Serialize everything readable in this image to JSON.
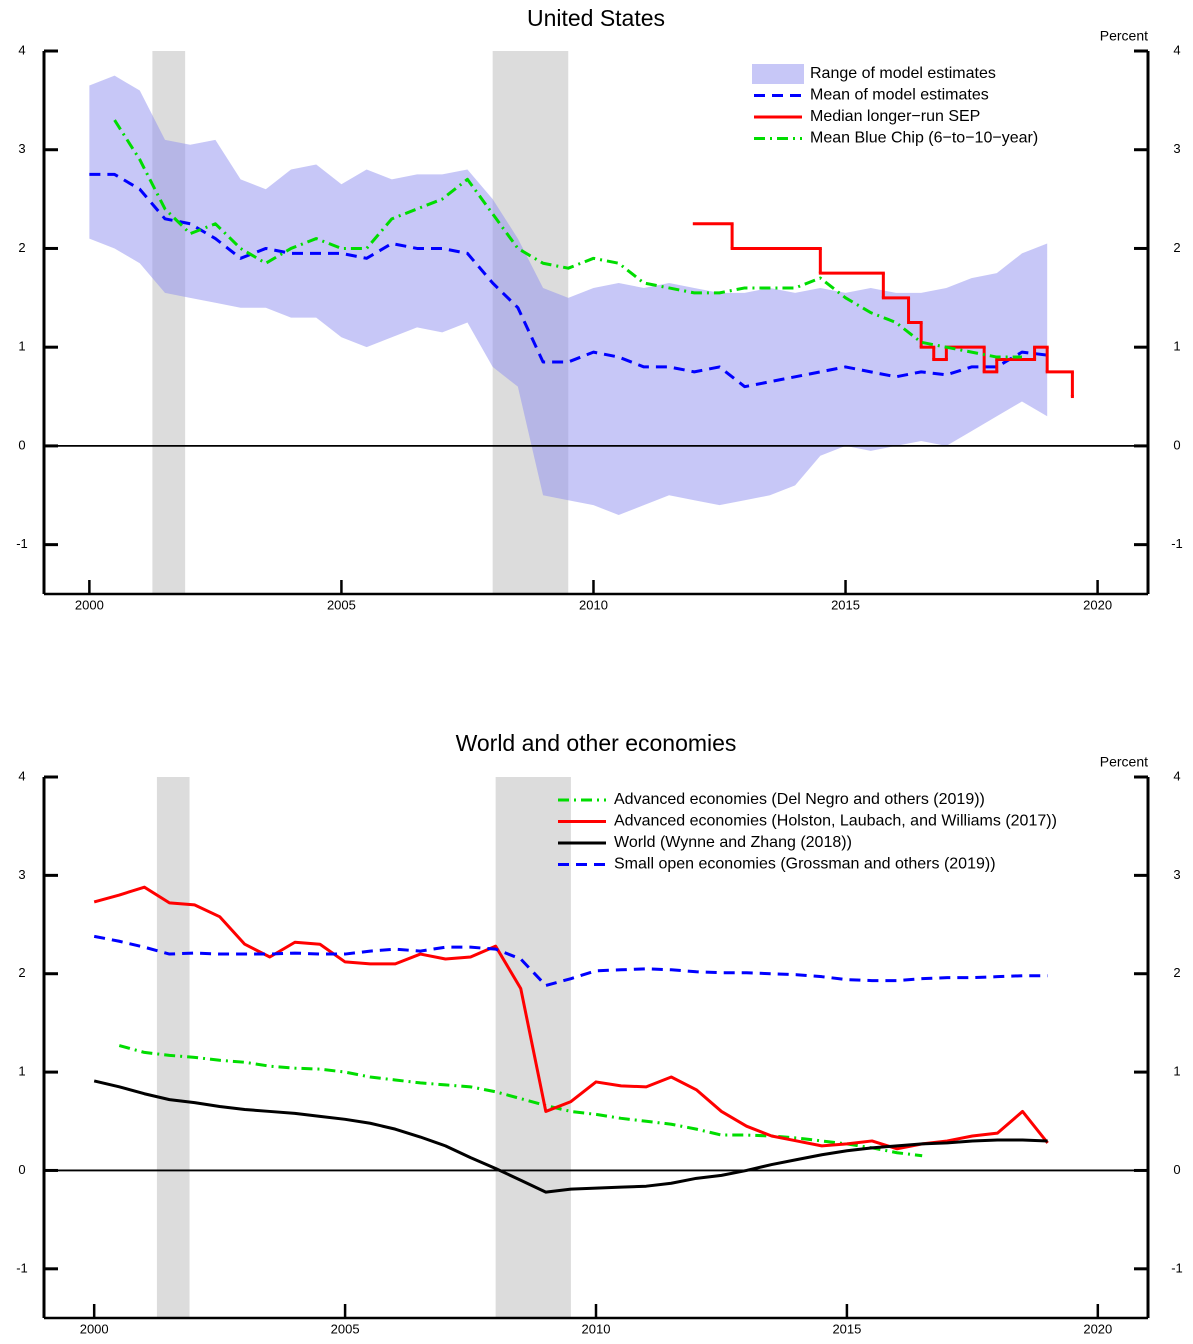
{
  "chart_data": [
    {
      "type": "line",
      "title": "United States",
      "y_unit_label": "Percent",
      "xlim": [
        1999.1,
        2021
      ],
      "ylim": [
        -1.5,
        4
      ],
      "xticks": [
        2000,
        2005,
        2010,
        2015,
        2020
      ],
      "yticks": [
        -1,
        0,
        1,
        2,
        3,
        4
      ],
      "zero_line": true,
      "legend": "upper right",
      "recessions": [
        [
          2001.25,
          2001.9
        ],
        [
          2008,
          2009.5
        ]
      ],
      "x": [
        2000,
        2000.5,
        2001,
        2001.5,
        2002,
        2002.5,
        2003,
        2003.5,
        2004,
        2004.5,
        2005,
        2005.5,
        2006,
        2006.5,
        2007,
        2007.5,
        2008,
        2008.5,
        2009,
        2009.5,
        2010,
        2010.5,
        2011,
        2011.5,
        2012,
        2012.5,
        2013,
        2013.5,
        2014,
        2014.5,
        2015,
        2015.5,
        2016,
        2016.5,
        2017,
        2017.5,
        2018,
        2018.5,
        2019
      ],
      "series": [
        {
          "name": "Range of model estimates",
          "color": "#9090f0",
          "style": "band",
          "upper": [
            3.65,
            3.75,
            3.6,
            3.1,
            3.05,
            3.1,
            2.7,
            2.6,
            2.8,
            2.85,
            2.65,
            2.8,
            2.7,
            2.75,
            2.75,
            2.8,
            2.5,
            2.1,
            1.6,
            1.5,
            1.6,
            1.65,
            1.6,
            1.65,
            1.6,
            1.55,
            1.55,
            1.6,
            1.55,
            1.6,
            1.55,
            1.6,
            1.55,
            1.55,
            1.6,
            1.7,
            1.75,
            1.95,
            2.05
          ],
          "lower": [
            2.1,
            2.0,
            1.85,
            1.55,
            1.5,
            1.45,
            1.4,
            1.4,
            1.3,
            1.3,
            1.1,
            1.0,
            1.1,
            1.2,
            1.15,
            1.25,
            0.8,
            0.6,
            -0.5,
            -0.55,
            -0.6,
            -0.7,
            -0.6,
            -0.5,
            -0.55,
            -0.6,
            -0.55,
            -0.5,
            -0.4,
            -0.1,
            0.0,
            -0.05,
            0.0,
            0.05,
            0.0,
            0.15,
            0.3,
            0.45,
            0.3
          ]
        },
        {
          "name": "Mean of model estimates",
          "color": "#0000ff",
          "style": "dashed",
          "values": [
            2.75,
            2.75,
            2.6,
            2.3,
            2.25,
            2.1,
            1.9,
            2.0,
            1.95,
            1.95,
            1.95,
            1.9,
            2.05,
            2.0,
            2.0,
            1.95,
            1.65,
            1.4,
            0.85,
            0.85,
            0.95,
            0.9,
            0.8,
            0.8,
            0.75,
            0.8,
            0.6,
            0.65,
            0.7,
            0.75,
            0.8,
            0.75,
            0.7,
            0.75,
            0.72,
            0.8,
            0.8,
            0.95,
            0.92
          ]
        },
        {
          "name": "Median longer−run SEP",
          "color": "#ff0000",
          "style": "step",
          "x": [
            2012,
            2012.75,
            2014.5,
            2015.75,
            2016.25,
            2016.5,
            2016.75,
            2017,
            2017.75,
            2018,
            2018.75,
            2019,
            2019.5
          ],
          "values": [
            2.25,
            2.0,
            1.75,
            1.5,
            1.25,
            1.0,
            0.875,
            1.0,
            0.75,
            0.875,
            1.0,
            0.75,
            0.5
          ]
        },
        {
          "name": "Mean Blue Chip (6−to−10−year)",
          "color": "#00dd00",
          "style": "dashdot",
          "values": [
            null,
            3.3,
            2.9,
            2.4,
            2.15,
            2.25,
            2.0,
            1.85,
            2.0,
            2.1,
            2.0,
            2.0,
            2.3,
            2.4,
            2.5,
            2.7,
            2.35,
            2.0,
            1.85,
            1.8,
            1.9,
            1.85,
            1.65,
            1.6,
            1.55,
            1.55,
            1.6,
            1.6,
            1.6,
            1.7,
            1.5,
            1.35,
            1.25,
            1.05,
            1.0,
            0.95,
            0.9,
            0.9,
            null
          ]
        }
      ]
    },
    {
      "type": "line",
      "title": "World and other economies",
      "y_unit_label": "Percent",
      "xlim": [
        1999,
        2021
      ],
      "ylim": [
        -1.5,
        4
      ],
      "xticks": [
        2000,
        2005,
        2010,
        2015,
        2020
      ],
      "yticks": [
        -1,
        0,
        1,
        2,
        3,
        4
      ],
      "zero_line": true,
      "legend": "upper right",
      "recessions": [
        [
          2001.25,
          2001.9
        ],
        [
          2008,
          2009.5
        ]
      ],
      "x": [
        2000,
        2000.5,
        2001,
        2001.5,
        2002,
        2002.5,
        2003,
        2003.5,
        2004,
        2004.5,
        2005,
        2005.5,
        2006,
        2006.5,
        2007,
        2007.5,
        2008,
        2008.5,
        2009,
        2009.5,
        2010,
        2010.5,
        2011,
        2011.5,
        2012,
        2012.5,
        2013,
        2013.5,
        2014,
        2014.5,
        2015,
        2015.5,
        2016,
        2016.5,
        2017,
        2017.5,
        2018,
        2018.5,
        2019
      ],
      "series": [
        {
          "name": "Advanced economies (Del Negro and others (2019))",
          "color": "#00dd00",
          "style": "dashdot",
          "values": [
            null,
            1.27,
            1.2,
            1.17,
            1.15,
            1.12,
            1.1,
            1.06,
            1.04,
            1.03,
            1.0,
            0.95,
            0.92,
            0.89,
            0.87,
            0.85,
            0.8,
            0.73,
            0.66,
            0.6,
            0.57,
            0.53,
            0.5,
            0.47,
            0.42,
            0.36,
            0.36,
            0.35,
            0.33,
            0.3,
            0.27,
            0.23,
            0.18,
            0.15,
            null,
            null,
            null,
            null,
            null
          ]
        },
        {
          "name": "Advanced economies (Holston, Laubach, and Williams (2017))",
          "color": "#ff0000",
          "style": "solid",
          "values": [
            2.73,
            2.8,
            2.88,
            2.72,
            2.7,
            2.58,
            2.3,
            2.17,
            2.32,
            2.3,
            2.12,
            2.1,
            2.1,
            2.2,
            2.15,
            2.17,
            2.28,
            1.85,
            0.6,
            0.7,
            0.9,
            0.86,
            0.85,
            0.95,
            0.82,
            0.6,
            0.45,
            0.35,
            0.3,
            0.25,
            0.27,
            0.3,
            0.22,
            0.27,
            0.3,
            0.35,
            0.38,
            0.6,
            0.28
          ]
        },
        {
          "name": "World (Wynne and Zhang (2018))",
          "color": "#000000",
          "style": "solid",
          "values": [
            0.91,
            0.85,
            0.78,
            0.72,
            0.69,
            0.65,
            0.62,
            0.6,
            0.58,
            0.55,
            0.52,
            0.48,
            0.42,
            0.34,
            0.25,
            0.13,
            0.02,
            -0.1,
            -0.22,
            -0.19,
            -0.18,
            -0.17,
            -0.16,
            -0.13,
            -0.08,
            -0.05,
            0.0,
            0.06,
            0.11,
            0.16,
            0.2,
            0.23,
            0.25,
            0.27,
            0.28,
            0.3,
            0.31,
            0.31,
            0.3
          ]
        },
        {
          "name": "Small open economies (Grossman and others (2019))",
          "color": "#0000ff",
          "style": "dashed",
          "values": [
            2.38,
            2.33,
            2.27,
            2.2,
            2.21,
            2.2,
            2.2,
            2.2,
            2.21,
            2.2,
            2.2,
            2.23,
            2.25,
            2.23,
            2.27,
            2.27,
            2.25,
            2.15,
            1.88,
            1.95,
            2.03,
            2.04,
            2.05,
            2.04,
            2.02,
            2.01,
            2.01,
            2.0,
            1.99,
            1.97,
            1.94,
            1.93,
            1.93,
            1.95,
            1.96,
            1.96,
            1.97,
            1.98,
            1.98
          ]
        }
      ]
    }
  ]
}
